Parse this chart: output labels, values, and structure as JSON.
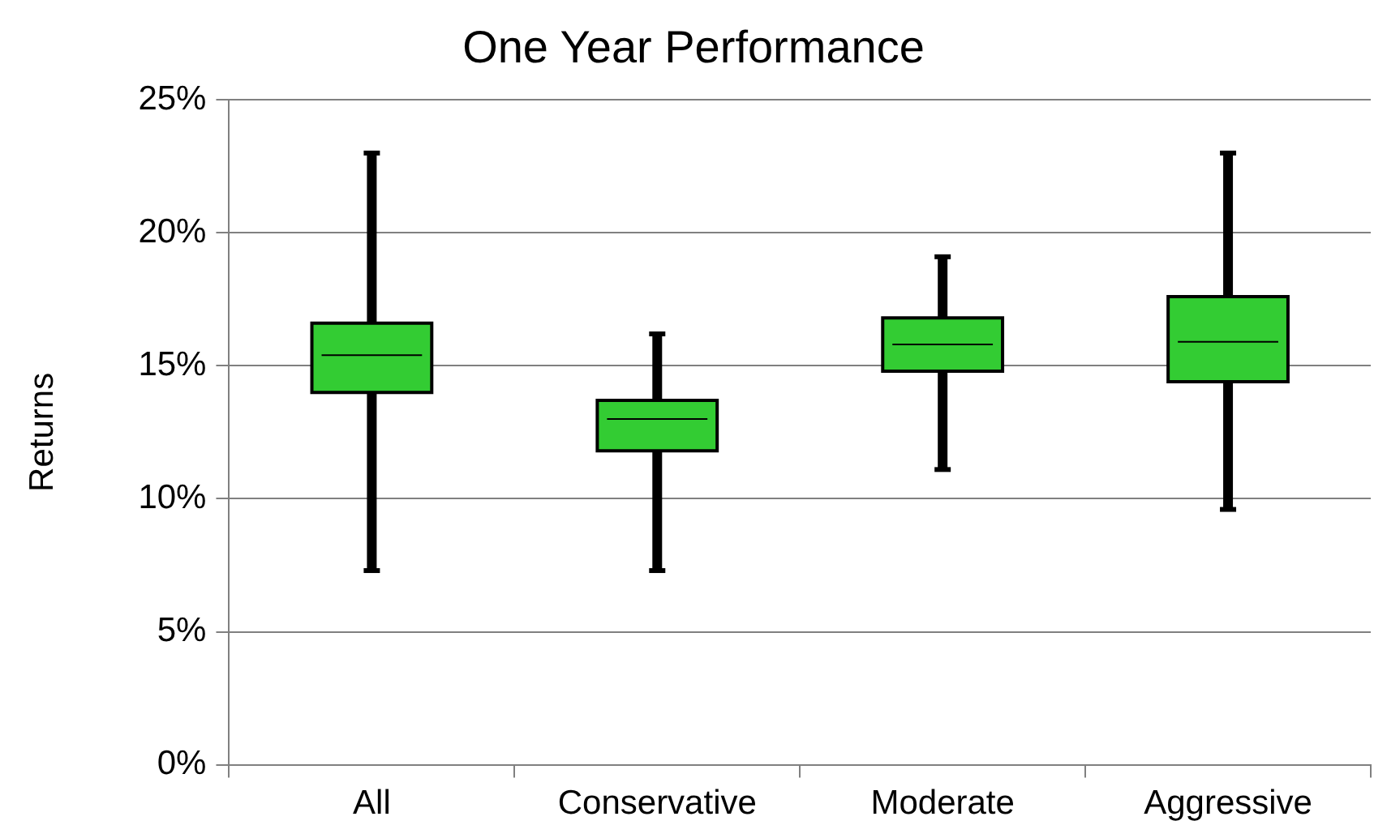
{
  "chart_data": {
    "type": "box",
    "title": "One Year Performance",
    "ylabel": "Returns",
    "categories": [
      "All",
      "Conservative",
      "Moderate",
      "Aggressive"
    ],
    "color": "#33cc33",
    "boxes": [
      {
        "low": 7.3,
        "q1": 14.0,
        "median": 15.4,
        "q3": 16.6,
        "high": 23.0
      },
      {
        "low": 7.3,
        "q1": 11.8,
        "median": 13.0,
        "q3": 13.7,
        "high": 16.2
      },
      {
        "low": 11.1,
        "q1": 14.8,
        "median": 15.8,
        "q3": 16.8,
        "high": 19.1
      },
      {
        "low": 9.6,
        "q1": 14.4,
        "median": 15.9,
        "q3": 17.6,
        "high": 23.0
      }
    ],
    "ylim": [
      0,
      25
    ],
    "yticks": [
      {
        "value": 0,
        "label": "0%"
      },
      {
        "value": 5,
        "label": "5%"
      },
      {
        "value": 10,
        "label": "10%"
      },
      {
        "value": 15,
        "label": "15%"
      },
      {
        "value": 20,
        "label": "20%"
      },
      {
        "value": 25,
        "label": "25%"
      }
    ],
    "grid": "y",
    "legend": false
  }
}
